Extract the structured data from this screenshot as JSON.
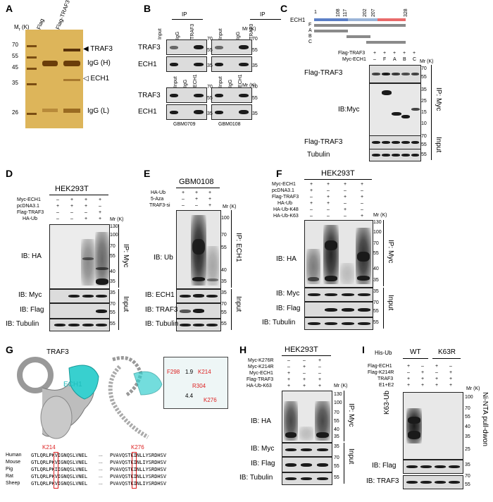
{
  "panels": {
    "A": {
      "label": "A",
      "mr": "M",
      "mr_sub": "r",
      "mr_unit": "(K)",
      "lanes": [
        "Flag",
        "Flag-TRAF3"
      ],
      "markers": [
        "70",
        "55",
        "45",
        "35",
        "26"
      ],
      "annotations": [
        "TRAF3",
        "IgG (H)",
        "ECH1",
        "IgG (L)"
      ]
    },
    "B": {
      "label": "B",
      "ip": "IP",
      "top_lanes": [
        "Input",
        "IgG",
        "TRAF3"
      ],
      "bottom_lanes": [
        "Input",
        "IgG",
        "ECH1"
      ],
      "rows": [
        "TRAF3",
        "ECH1"
      ],
      "markers_top": [
        "70",
        "55",
        "35"
      ],
      "markers_bottom": [
        "70",
        "55",
        "35"
      ],
      "mr": "Mr (K)",
      "samples": [
        "GBM0709",
        "GBM0108"
      ]
    },
    "C": {
      "label": "C",
      "protein": "ECH1",
      "positions": [
        "1",
        "108",
        "117",
        "202",
        "207",
        "328"
      ],
      "constructs": [
        "F",
        "A",
        "B",
        "C"
      ],
      "rows": [
        "Flag-TRAF3",
        "Myc-ECH1"
      ],
      "row1": [
        "+",
        "+",
        "+",
        "+",
        "+"
      ],
      "row2": [
        "–",
        "F",
        "A",
        "B",
        "C"
      ],
      "mr": "Mr (K)",
      "blot_labels": [
        "Flag-TRAF3",
        "IB:Myc",
        "Flag-TRAF3",
        "Tubulin"
      ],
      "markers_1": [
        "70",
        "55"
      ],
      "markers_2": [
        "35",
        "25",
        "15",
        "10"
      ],
      "markers_3": [
        "70",
        "55"
      ],
      "markers_4": [
        "55"
      ],
      "side_ip": "IP: Myc",
      "side_input": "Input"
    },
    "D": {
      "label": "D",
      "cell": "HEK293T",
      "conditions": [
        {
          "name": "Myc-ECH1",
          "values": [
            "–",
            "+",
            "+",
            "+"
          ]
        },
        {
          "name": "pcDNA3.1",
          "values": [
            "+",
            "+",
            "+",
            "–"
          ]
        },
        {
          "name": "Flag-TRAF3",
          "values": [
            "–",
            "–",
            "–",
            "+"
          ]
        },
        {
          "name": "HA-Ub",
          "values": [
            "–",
            "–",
            "+",
            "+"
          ]
        }
      ],
      "mr": "Mr (K)",
      "markers": [
        "130",
        "100",
        "70",
        "55",
        "40",
        "35"
      ],
      "blots": [
        "IB: HA",
        "IB: Myc",
        "IB: Flag",
        "IB: Tubulin"
      ],
      "markers_myc": [
        "35"
      ],
      "markers_flag": [
        "70",
        "55"
      ],
      "markers_tub": [
        "55"
      ],
      "side_ip": "IP: Myc",
      "side_input": "Input"
    },
    "E": {
      "label": "E",
      "cell": "GBM0108",
      "conditions": [
        {
          "name": "HA-Ub",
          "values": [
            "+",
            "+",
            "+"
          ]
        },
        {
          "name": "5-Aza",
          "values": [
            "–",
            "+",
            "+"
          ]
        },
        {
          "name": "TRAF3-si",
          "values": [
            "–",
            "–",
            "+"
          ]
        }
      ],
      "mr": "Mr (K)",
      "markers": [
        "100",
        "70",
        "55",
        "40",
        "35"
      ],
      "blots": [
        "IB: Ub",
        "IB: ECH1",
        "IB: TRAF3",
        "IB: Tubulin"
      ],
      "markers_ech1": [
        "35"
      ],
      "markers_traf3": [
        "70",
        "55"
      ],
      "markers_tub": [
        "55"
      ],
      "side_ip": "IP: ECH1",
      "side_input": "Input"
    },
    "F": {
      "label": "F",
      "cell": "HEK293T",
      "conditions": [
        {
          "name": "Myc-ECH1",
          "values": [
            "+",
            "+",
            "+",
            "+"
          ]
        },
        {
          "name": "pcDNA3.1",
          "values": [
            "+",
            "–",
            "–",
            "–"
          ]
        },
        {
          "name": "Flag-TRAF3",
          "values": [
            "–",
            "+",
            "+",
            "+"
          ]
        },
        {
          "name": "HA-Ub",
          "values": [
            "+",
            "+",
            "–",
            "–"
          ]
        },
        {
          "name": "HA-Ub-K48",
          "values": [
            "–",
            "–",
            "+",
            "–"
          ]
        },
        {
          "name": "HA-Ub-K63",
          "values": [
            "–",
            "–",
            "–",
            "+"
          ]
        }
      ],
      "mr": "Mr (K)",
      "markers": [
        "130",
        "100",
        "70",
        "55",
        "40",
        "35"
      ],
      "blots": [
        "IB: HA",
        "IB: Myc",
        "IB: Flag",
        "IB: Tubulin"
      ],
      "markers_myc": [
        "35"
      ],
      "markers_flag": [
        "70",
        "55"
      ],
      "markers_tub": [
        "55"
      ],
      "side_ip": "IP: Myc",
      "side_input": "Input"
    },
    "G": {
      "label": "G",
      "protein1": "TRAF3",
      "protein2": "ECH1",
      "residues": [
        "F298",
        "K214",
        "R304",
        "K276"
      ],
      "distances": [
        "1.9",
        "4.4"
      ],
      "site1": "K214",
      "site2": "K276",
      "species": [
        "Human",
        "Mouse",
        "Pig",
        "Rat",
        "Sheep"
      ],
      "seq_left": [
        "GTLQRLPKVIGNQSLVNEL",
        "GTLQRLPKVIGNQSLVNEL",
        "GTLQRLPKIIGNQSLVNEL",
        "GTLQRLPKVIGNQSLVNEL",
        "GTLQRLPKVIGNQSLVNEL"
      ],
      "ellipsis": "...",
      "seq_right": [
        "PVAVQSTKINLLYSRDHSV",
        "PVAVQSTKINLIYSRDHSV",
        "PVAVQSTKINLLYSRDHSV",
        "PVAVQSTKINLLYSRDHSV",
        "PVAVQSTKINLIYSRDHSV"
      ]
    },
    "H": {
      "label": "H",
      "cell": "HEK293T",
      "conditions": [
        {
          "name": "Myc-K276R",
          "values": [
            "–",
            "–",
            "+"
          ]
        },
        {
          "name": "Myc-K214R",
          "values": [
            "–",
            "+",
            "–"
          ]
        },
        {
          "name": "Myc-ECH1",
          "values": [
            "+",
            "–",
            "–"
          ]
        },
        {
          "name": "Flag-TRAF3",
          "values": [
            "+",
            "+",
            "+"
          ]
        },
        {
          "name": "HA-Ub-K63",
          "values": [
            "+",
            "+",
            "+"
          ]
        }
      ],
      "mr": "Mr (K)",
      "markers": [
        "130",
        "100",
        "70",
        "55",
        "40",
        "35"
      ],
      "blots": [
        "IB: HA",
        "IB: Myc",
        "IB: Flag",
        "IB: Tubulin"
      ],
      "markers_myc": [
        "35"
      ],
      "markers_flag": [
        "70",
        "55"
      ],
      "markers_tub": [
        "55"
      ],
      "side_ip": "IP: Myc",
      "side_input": "Input"
    },
    "I": {
      "label": "I",
      "his": "His-Ub",
      "groups": [
        "WT",
        "K63R"
      ],
      "conditions": [
        {
          "name": "Flag-ECH1",
          "values": [
            "+",
            "–",
            "+",
            "–"
          ]
        },
        {
          "name": "Flag-K214R",
          "values": [
            "–",
            "+",
            "–",
            "+"
          ]
        },
        {
          "name": "TRAF3",
          "values": [
            "+",
            "+",
            "+",
            "+"
          ]
        },
        {
          "name": "E1+E2",
          "values": [
            "+",
            "+",
            "+",
            "+"
          ]
        }
      ],
      "mr": "Mr (K)",
      "markers": [
        "100",
        "70",
        "55",
        "40",
        "35",
        "25"
      ],
      "blots": [
        "K63-Ub",
        "IB: Flag",
        "IB: TRAF3"
      ],
      "markers_flag": [
        "35"
      ],
      "markers_traf3": [
        "70",
        "55"
      ],
      "side": "Ni-NTA pull-dwon"
    }
  }
}
